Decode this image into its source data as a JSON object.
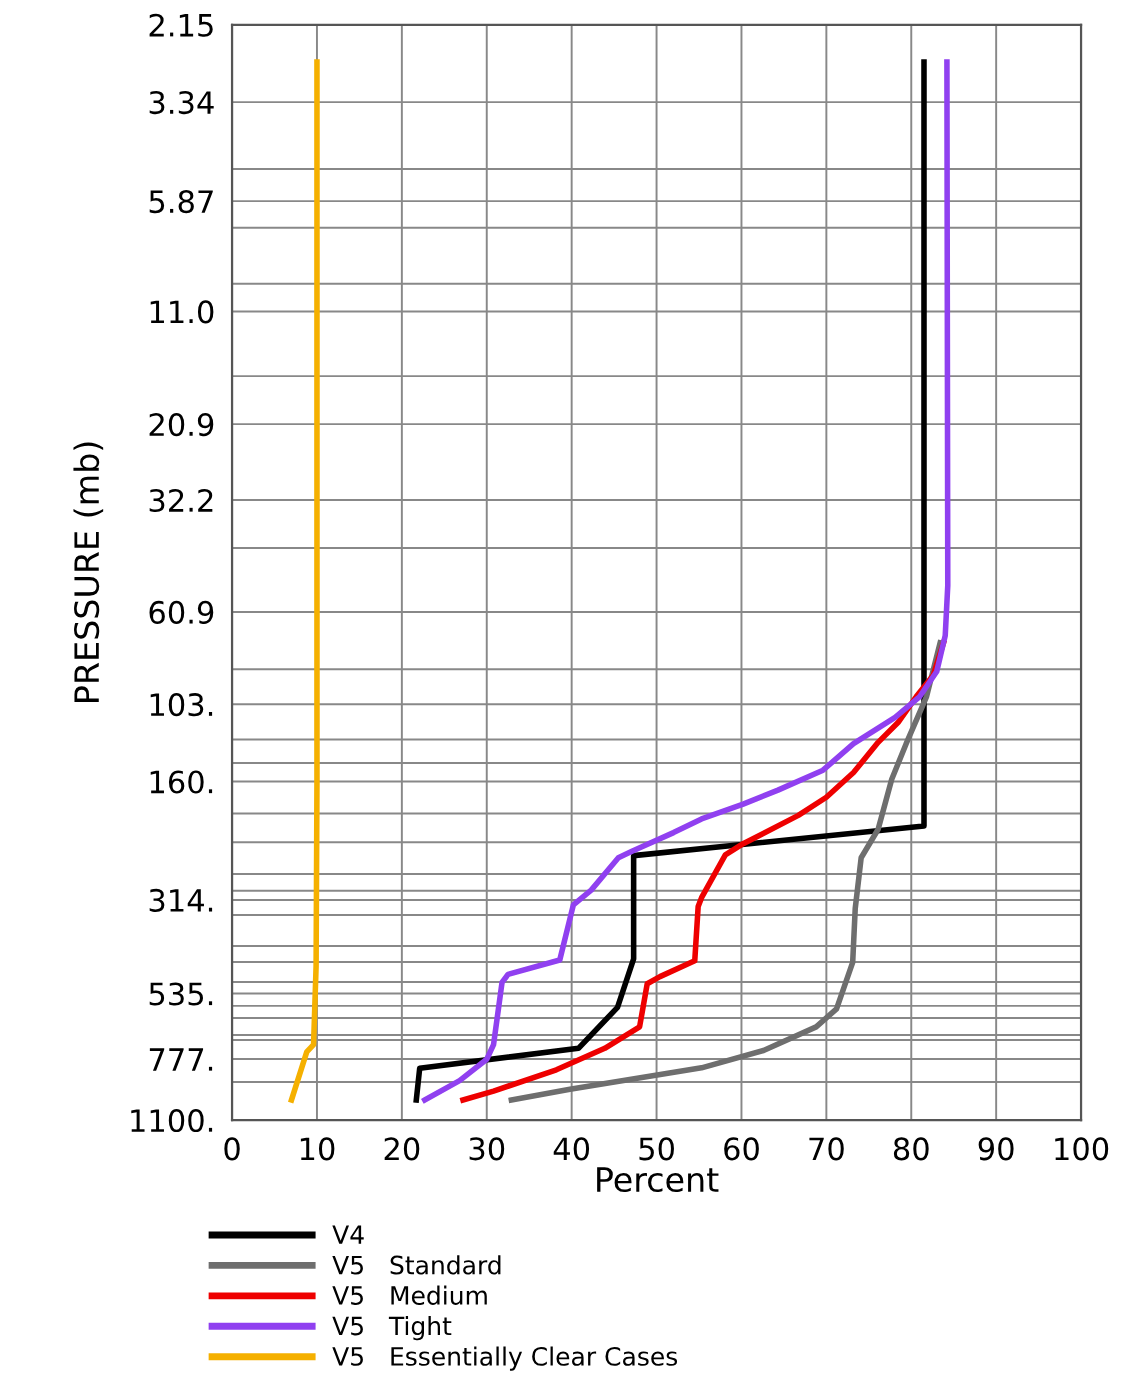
{
  "chart_data": {
    "type": "line",
    "xlabel": "Percent",
    "ylabel": "PRESSURE (mb)",
    "log": "y",
    "xlim": [
      0,
      100
    ],
    "xticks": [
      0,
      10,
      20,
      30,
      40,
      50,
      60,
      70,
      80,
      90,
      100
    ],
    "ylim": [
      1100,
      2.15
    ],
    "yticks": [
      2.15,
      3.34,
      {
        "value": 4.89,
        "label": null
      },
      5.87,
      {
        "value": 6.83,
        "label": null
      },
      {
        "value": 9.4,
        "label": null
      },
      {
        "value": 11.0,
        "label": "11.0"
      },
      {
        "value": 15.9,
        "label": null
      },
      20.9,
      32.2,
      {
        "value": 42.3,
        "label": null
      },
      60.9,
      {
        "value": 84.4,
        "label": null
      },
      {
        "value": 103,
        "label": "103."
      },
      {
        "value": 126,
        "label": null
      },
      {
        "value": 144,
        "label": null
      },
      {
        "value": 160,
        "label": "160."
      },
      {
        "value": 192,
        "label": null
      },
      {
        "value": 226,
        "label": null
      },
      {
        "value": 271,
        "label": null
      },
      {
        "value": 298,
        "label": null
      },
      {
        "value": 314,
        "label": "314."
      },
      {
        "value": 342,
        "label": null
      },
      {
        "value": 408,
        "label": null
      },
      {
        "value": 447,
        "label": null
      },
      {
        "value": 501,
        "label": null
      },
      {
        "value": 535,
        "label": "535."
      },
      {
        "value": 574,
        "label": null
      },
      {
        "value": 615,
        "label": null
      },
      {
        "value": 678,
        "label": null
      },
      {
        "value": 697,
        "label": null
      },
      {
        "value": 777,
        "label": "777."
      },
      {
        "value": 886,
        "label": null
      },
      {
        "value": 1100,
        "label": "1100."
      }
    ],
    "grid": true,
    "legend": "bottom",
    "marker": "none",
    "line_style": "solid",
    "series": [
      {
        "name": "V4",
        "color": "#000000",
        "x": [
          81.5,
          81.5,
          47.3,
          47.3,
          45.4,
          40.8,
          22.1,
          21.7
        ],
        "values": [
          2.66,
          206,
          244,
          439,
          579,
          731,
          819,
          981
        ]
      },
      {
        "name": "V5   Standard",
        "color": "#6e6e6e",
        "x": [
          32.9,
          39.8,
          55.3,
          62.6,
          68.8,
          71.2,
          73.1,
          73.4,
          74.1,
          76.1,
          77.7,
          79.4,
          81.8,
          83.4
        ],
        "values": [
          981,
          923,
          817,
          740,
          647,
          584,
          448,
          330,
          247,
          210,
          158,
          129,
          98.6,
          72.6
        ]
      },
      {
        "name": "V5   Medium",
        "color": "#ee0000",
        "x": [
          27.2,
          30.8,
          38.2,
          43.9,
          48.0,
          48.9,
          50.4,
          54.5,
          54.9,
          55.3,
          58.1,
          60.2,
          66.7,
          70.0,
          73.2,
          76.1,
          78.5,
          80.6,
          82.6,
          83.8
        ],
        "values": [
          981,
          933,
          826,
          731,
          647,
          506,
          486,
          444,
          326,
          310,
          243,
          228,
          194,
          175,
          152,
          128,
          114,
          98.6,
          87.3,
          72.6
        ]
      },
      {
        "name": "V5   Tight",
        "color": "#9040f0",
        "x": [
          22.7,
          26.8,
          30.0,
          30.8,
          31.8,
          32.5,
          38.6,
          40.2,
          42.3,
          45.5,
          47.1,
          52.0,
          55.3,
          60.2,
          64.3,
          69.6,
          73.2,
          78.1,
          81.0,
          83.0,
          84.0,
          84.3,
          84.2
        ],
        "values": [
          981,
          879,
          778,
          716,
          502,
          480,
          442,
          323,
          297,
          247,
          238,
          214,
          198,
          182,
          168,
          150,
          129,
          111,
          98.6,
          85.5,
          69.7,
          52.4,
          2.66
        ]
      },
      {
        "name": "V5   Essentially Clear Cases",
        "color": "#f5b000",
        "x": [
          7.0,
          8.8,
          9.6,
          9.9,
          10.0,
          10.0
        ],
        "values": [
          981,
          746,
          716,
          457,
          160,
          2.66
        ]
      }
    ]
  }
}
